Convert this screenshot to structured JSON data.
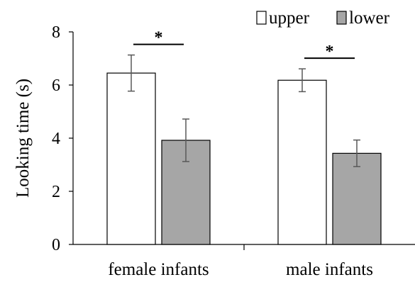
{
  "chart_data": {
    "type": "bar",
    "categories": [
      "female infants",
      "male infants"
    ],
    "series": [
      {
        "name": "upper",
        "values": [
          6.45,
          6.18
        ],
        "errors": [
          0.68,
          0.43
        ],
        "color": "#ffffff"
      },
      {
        "name": "lower",
        "values": [
          3.92,
          3.43
        ],
        "errors": [
          0.8,
          0.5
        ],
        "color": "#a6a6a6"
      }
    ],
    "title": "",
    "xlabel": "",
    "ylabel": "Looking time (s)",
    "ylim": [
      0,
      8
    ],
    "yticks": [
      "0",
      "2",
      "4",
      "6",
      "8"
    ],
    "legend_position": "top-right",
    "grid": false,
    "significance": [
      {
        "category": "female infants",
        "label": "*"
      },
      {
        "category": "male infants",
        "label": "*"
      }
    ]
  }
}
